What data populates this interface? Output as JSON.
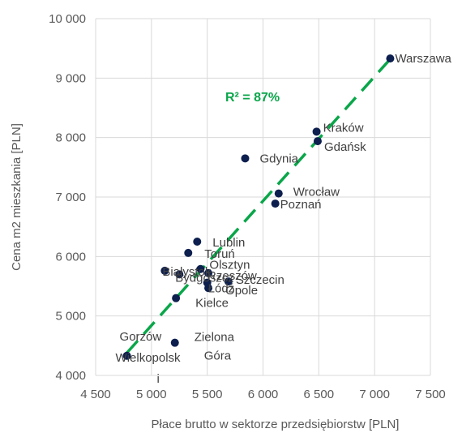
{
  "chart_data": {
    "type": "scatter",
    "xlabel": "Płace brutto w sektorze przedsiębiorstw [PLN]",
    "ylabel": "Cena m2 mieszkania [PLN]",
    "xlim": [
      4500,
      7500
    ],
    "ylim": [
      4000,
      10000
    ],
    "x_ticks": [
      "4 500",
      "5 000",
      "5 500",
      "6 000",
      "6 500",
      "7 000",
      "7 500"
    ],
    "y_ticks": [
      "4 000",
      "5 000",
      "6 000",
      "7 000",
      "8 000",
      "9 000",
      "10 000"
    ],
    "grid": "vertical and horizontal",
    "annotation": "R² = 87%",
    "colors": {
      "points": "#0d1f4e",
      "trend": "#0aa64a",
      "grid": "#d9d9d9",
      "text": "#595959"
    },
    "trendline": {
      "x": [
        4780,
        7140
      ],
      "y": [
        4380,
        9320
      ]
    },
    "points": [
      {
        "name": "Warszawa",
        "x": 7140,
        "y": 9330
      },
      {
        "name": "Kraków",
        "x": 6480,
        "y": 8100
      },
      {
        "name": "Gdańsk",
        "x": 6490,
        "y": 7940
      },
      {
        "name": "Gdynia",
        "x": 5840,
        "y": 7650
      },
      {
        "name": "Wrocław",
        "x": 6140,
        "y": 7060
      },
      {
        "name": "Poznań",
        "x": 6110,
        "y": 6890
      },
      {
        "name": "Lublin",
        "x": 5410,
        "y": 6250
      },
      {
        "name": "Toruń",
        "x": 5330,
        "y": 6060
      },
      {
        "name": "Białystok",
        "x": 5120,
        "y": 5760
      },
      {
        "name": "Bydgoszcz",
        "x": 5250,
        "y": 5700
      },
      {
        "name": "Olsztyn",
        "x": 5440,
        "y": 5790
      },
      {
        "name": "Rzeszów",
        "x": 5510,
        "y": 5720
      },
      {
        "name": "Łódź",
        "x": 5500,
        "y": 5560
      },
      {
        "name": "Szczecin",
        "x": 5690,
        "y": 5580
      },
      {
        "name": "Opole",
        "x": 5510,
        "y": 5470
      },
      {
        "name": "Kielce",
        "x": 5220,
        "y": 5300
      },
      {
        "name": "Zielona Góra",
        "x": 5210,
        "y": 4550
      },
      {
        "name": "Gorzów Wielkopolski",
        "x": 4780,
        "y": 4330
      }
    ]
  }
}
